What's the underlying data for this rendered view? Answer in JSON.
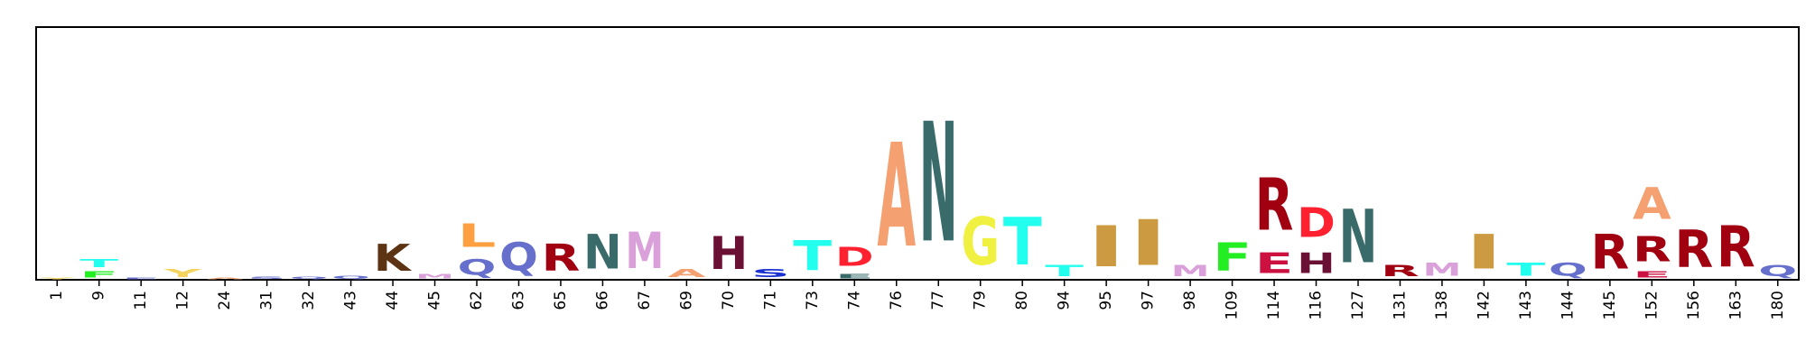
{
  "chart_data": {
    "type": "sequence-logo",
    "title": "",
    "xlabel": "",
    "ylabel": "",
    "ylim": [
      0,
      1.0
    ],
    "categories": [
      "1",
      "9",
      "11",
      "12",
      "24",
      "31",
      "32",
      "43",
      "44",
      "45",
      "62",
      "63",
      "65",
      "66",
      "67",
      "69",
      "70",
      "71",
      "73",
      "74",
      "76",
      "77",
      "79",
      "80",
      "94",
      "95",
      "97",
      "98",
      "109",
      "114",
      "116",
      "127",
      "131",
      "138",
      "142",
      "143",
      "144",
      "145",
      "152",
      "156",
      "163",
      "180"
    ],
    "positions": [
      {
        "label": "1",
        "stack": [
          {
            "letter": "Y",
            "height": 0.01,
            "color": "#f4d35e"
          }
        ]
      },
      {
        "label": "9",
        "stack": [
          {
            "letter": "F",
            "height": 0.04,
            "color": "#22ee22"
          },
          {
            "letter": "T",
            "height": 0.05,
            "color": "#22ffee"
          }
        ]
      },
      {
        "label": "11",
        "stack": [
          {
            "letter": "E",
            "height": 0.012,
            "color": "#6670cc"
          }
        ]
      },
      {
        "label": "12",
        "stack": [
          {
            "letter": "Y",
            "height": 0.05,
            "color": "#f4d35e"
          }
        ]
      },
      {
        "label": "24",
        "stack": [
          {
            "letter": "A",
            "height": 0.012,
            "color": "#f4a070"
          }
        ]
      },
      {
        "label": "31",
        "stack": [
          {
            "letter": "S",
            "height": 0.015,
            "color": "#6670cc"
          }
        ]
      },
      {
        "label": "32",
        "stack": [
          {
            "letter": "Q",
            "height": 0.015,
            "color": "#6670cc"
          }
        ]
      },
      {
        "label": "43",
        "stack": [
          {
            "letter": "Q",
            "height": 0.02,
            "color": "#6670cc"
          }
        ]
      },
      {
        "label": "44",
        "stack": [
          {
            "letter": "K",
            "height": 0.17,
            "color": "#5c3313"
          }
        ]
      },
      {
        "label": "45",
        "stack": [
          {
            "letter": "M",
            "height": 0.03,
            "color": "#d9a0d9"
          }
        ]
      },
      {
        "label": "62",
        "stack": [
          {
            "letter": "Q",
            "height": 0.1,
            "color": "#6670cc"
          },
          {
            "letter": "L",
            "height": 0.15,
            "color": "#ffa040"
          }
        ]
      },
      {
        "label": "63",
        "stack": [
          {
            "letter": "Q",
            "height": 0.18,
            "color": "#6670cc"
          }
        ]
      },
      {
        "label": "65",
        "stack": [
          {
            "letter": "R",
            "height": 0.17,
            "color": "#a00010"
          }
        ]
      },
      {
        "label": "66",
        "stack": [
          {
            "letter": "N",
            "height": 0.22,
            "color": "#3a6b6b"
          }
        ]
      },
      {
        "label": "67",
        "stack": [
          {
            "letter": "M",
            "height": 0.23,
            "color": "#d9a0d9"
          }
        ]
      },
      {
        "label": "69",
        "stack": [
          {
            "letter": "A",
            "height": 0.05,
            "color": "#f4a070"
          }
        ]
      },
      {
        "label": "70",
        "stack": [
          {
            "letter": "H",
            "height": 0.21,
            "color": "#6a1035"
          }
        ]
      },
      {
        "label": "71",
        "stack": [
          {
            "letter": "S",
            "height": 0.05,
            "color": "#1a30d0"
          }
        ]
      },
      {
        "label": "73",
        "stack": [
          {
            "letter": "T",
            "height": 0.19,
            "color": "#22ffee"
          }
        ]
      },
      {
        "label": "74",
        "stack": [
          {
            "letter": "E",
            "height": 0.03,
            "color": "#3a6b6b"
          },
          {
            "letter": "D",
            "height": 0.12,
            "color": "#ff2030"
          }
        ]
      },
      {
        "label": "76",
        "stack": [
          {
            "letter": "A",
            "height": 0.66,
            "color": "#f4a070"
          }
        ]
      },
      {
        "label": "77",
        "stack": [
          {
            "letter": "N",
            "height": 0.76,
            "color": "#3a6b6b"
          }
        ]
      },
      {
        "label": "79",
        "stack": [
          {
            "letter": "G",
            "height": 0.3,
            "color": "#f0f040"
          }
        ]
      },
      {
        "label": "80",
        "stack": [
          {
            "letter": "T",
            "height": 0.3,
            "color": "#22ffee"
          }
        ]
      },
      {
        "label": "94",
        "stack": [
          {
            "letter": "T",
            "height": 0.07,
            "color": "#22ffee"
          }
        ]
      },
      {
        "label": "95",
        "stack": [
          {
            "letter": "I",
            "height": 0.26,
            "color": "#cc9a40"
          }
        ]
      },
      {
        "label": "97",
        "stack": [
          {
            "letter": "I",
            "height": 0.29,
            "color": "#cc9a40"
          }
        ]
      },
      {
        "label": "98",
        "stack": [
          {
            "letter": "M",
            "height": 0.07,
            "color": "#d9a0d9"
          }
        ]
      },
      {
        "label": "109",
        "stack": [
          {
            "letter": "F",
            "height": 0.18,
            "color": "#22ee22"
          }
        ]
      },
      {
        "label": "114",
        "stack": [
          {
            "letter": "E",
            "height": 0.13,
            "color": "#cc1040"
          },
          {
            "letter": "R",
            "height": 0.33,
            "color": "#a00010"
          }
        ]
      },
      {
        "label": "116",
        "stack": [
          {
            "letter": "H",
            "height": 0.13,
            "color": "#6a1035"
          },
          {
            "letter": "D",
            "height": 0.19,
            "color": "#ff2030"
          }
        ]
      },
      {
        "label": "127",
        "stack": [
          {
            "letter": "N",
            "height": 0.34,
            "color": "#3a6b6b"
          }
        ]
      },
      {
        "label": "131",
        "stack": [
          {
            "letter": "R",
            "height": 0.07,
            "color": "#a00010"
          }
        ]
      },
      {
        "label": "138",
        "stack": [
          {
            "letter": "M",
            "height": 0.08,
            "color": "#d9a0d9"
          }
        ]
      },
      {
        "label": "142",
        "stack": [
          {
            "letter": "I",
            "height": 0.22,
            "color": "#cc9a40"
          }
        ]
      },
      {
        "label": "143",
        "stack": [
          {
            "letter": "T",
            "height": 0.08,
            "color": "#22ffee"
          }
        ]
      },
      {
        "label": "144",
        "stack": [
          {
            "letter": "Q",
            "height": 0.08,
            "color": "#6670cc"
          }
        ]
      },
      {
        "label": "145",
        "stack": [
          {
            "letter": "R",
            "height": 0.22,
            "color": "#a00010"
          }
        ]
      },
      {
        "label": "152",
        "stack": [
          {
            "letter": "E",
            "height": 0.04,
            "color": "#cc1040"
          },
          {
            "letter": "R",
            "height": 0.16,
            "color": "#a00010"
          },
          {
            "letter": "A",
            "height": 0.2,
            "color": "#f4a070"
          }
        ]
      },
      {
        "label": "156",
        "stack": [
          {
            "letter": "R",
            "height": 0.24,
            "color": "#a00010"
          }
        ]
      },
      {
        "label": "163",
        "stack": [
          {
            "letter": "R",
            "height": 0.26,
            "color": "#a00010"
          }
        ]
      },
      {
        "label": "180",
        "stack": [
          {
            "letter": "Q",
            "height": 0.07,
            "color": "#6670cc"
          }
        ]
      }
    ],
    "grid": false,
    "legend": "none"
  }
}
